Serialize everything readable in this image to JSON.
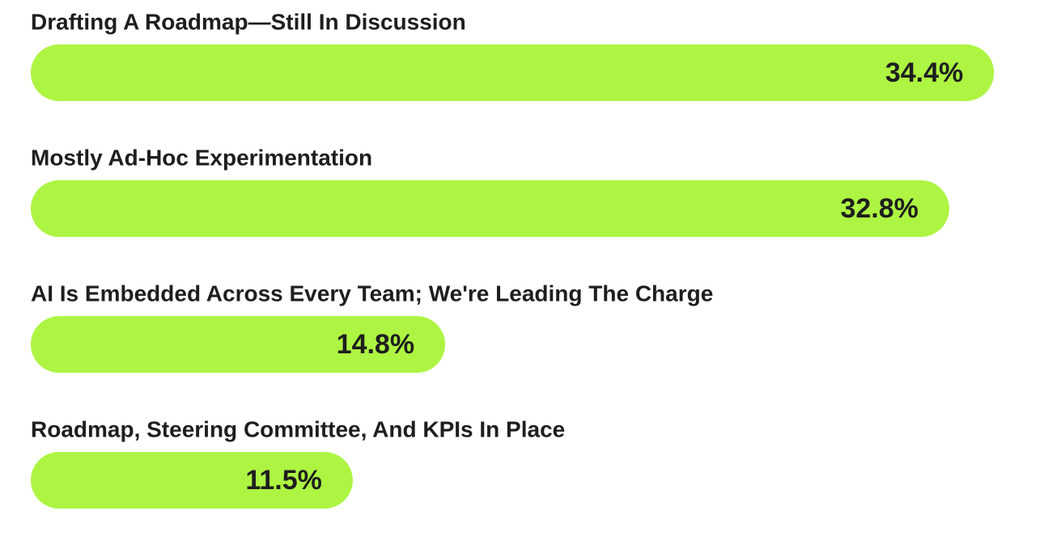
{
  "chart_data": {
    "type": "bar",
    "orientation": "horizontal",
    "categories": [
      "Drafting A Roadmap—Still In Discussion",
      "Mostly Ad-Hoc Experimentation",
      "AI Is Embedded Across Every Team; We're Leading The Charge",
      "Roadmap, Steering Committee, And KPIs In Place"
    ],
    "values": [
      34.4,
      32.8,
      14.8,
      11.5
    ],
    "value_labels": [
      "34.4%",
      "32.8%",
      "14.8%",
      "11.5%"
    ],
    "color": "#adf542"
  }
}
